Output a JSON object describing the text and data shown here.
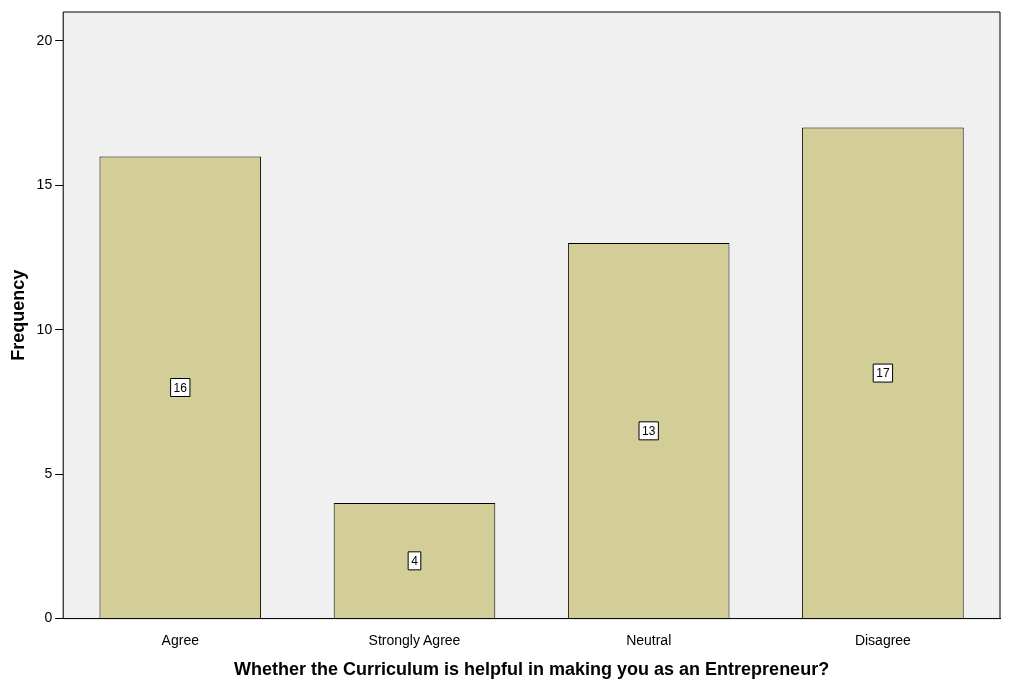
{
  "chart_data": {
    "type": "bar",
    "xlabel": "Whether the Curriculum is helpful in making you as an Entrepreneur?",
    "ylabel": "Frequency",
    "categories": [
      "Agree",
      "Strongly Agree",
      "Neutral",
      "Disagree"
    ],
    "values": [
      16,
      4,
      13,
      17
    ],
    "color": "#d3ce97",
    "ylim": [
      0,
      21
    ],
    "yticks": [
      0,
      5,
      10,
      15,
      20
    ],
    "data_labels": true
  }
}
